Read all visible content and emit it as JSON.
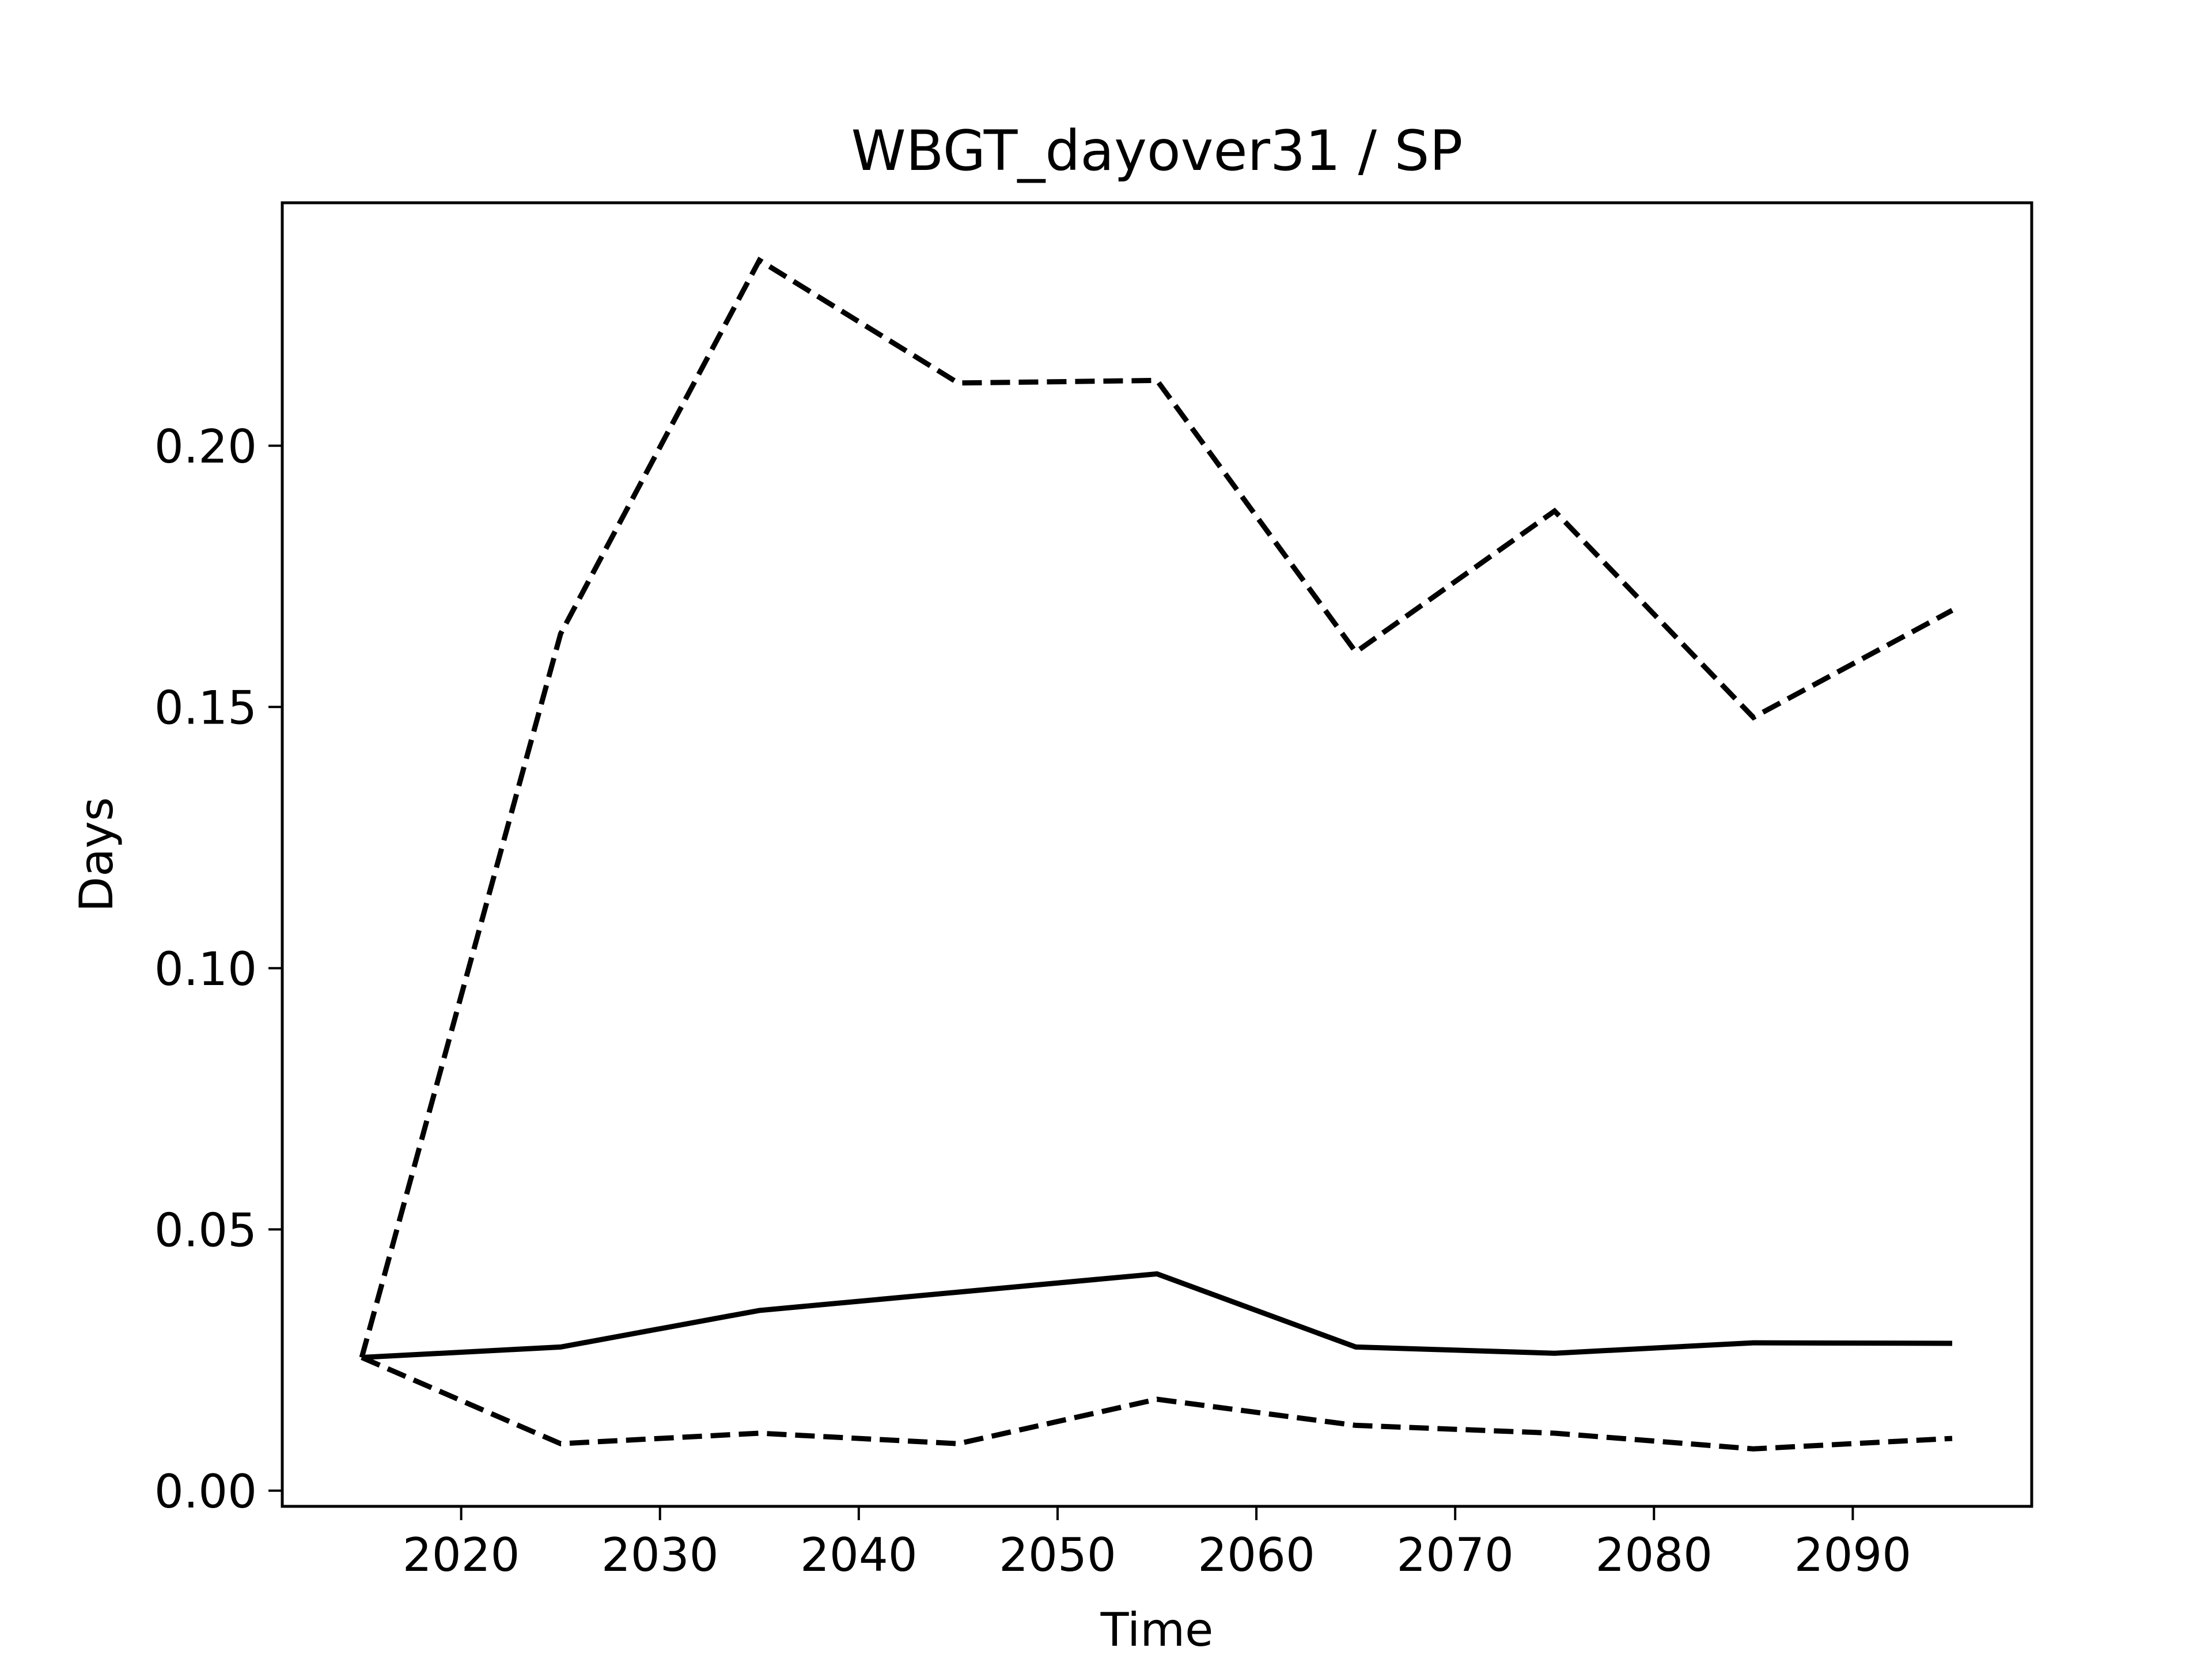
{
  "chart_data": {
    "type": "line",
    "title": "WBGT_dayover31 / SP",
    "xlabel": "Time",
    "ylabel": "Days",
    "xlim": [
      2011,
      2099
    ],
    "ylim": [
      -0.003,
      0.2465
    ],
    "x_ticks": [
      2020,
      2030,
      2040,
      2050,
      2060,
      2070,
      2080,
      2090
    ],
    "x_tick_labels": [
      "2020",
      "2030",
      "2040",
      "2050",
      "2060",
      "2070",
      "2080",
      "2090"
    ],
    "y_ticks": [
      0.0,
      0.05,
      0.1,
      0.15,
      0.2
    ],
    "y_tick_labels": [
      "0.00",
      "0.05",
      "0.10",
      "0.15",
      "0.20"
    ],
    "grid": false,
    "x": [
      2015,
      2025,
      2035,
      2045,
      2055,
      2065,
      2075,
      2085,
      2095
    ],
    "series": [
      {
        "style": "solid",
        "color": "#000000",
        "values": [
          0.0255,
          0.0275,
          0.0345,
          0.038,
          0.0415,
          0.0275,
          0.0263,
          0.0283,
          0.0282
        ]
      },
      {
        "style": "dashed",
        "color": "#000000",
        "values": [
          0.0255,
          0.164,
          0.2355,
          0.212,
          0.2125,
          0.1605,
          0.1875,
          0.148,
          0.1685
        ]
      },
      {
        "style": "dashed",
        "color": "#000000",
        "values": [
          0.0255,
          0.009,
          0.011,
          0.009,
          0.0175,
          0.0125,
          0.011,
          0.008,
          0.01
        ]
      }
    ]
  }
}
